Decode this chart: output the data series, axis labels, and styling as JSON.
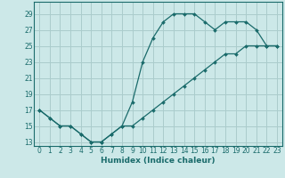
{
  "xlabel": "Humidex (Indice chaleur)",
  "bg_color": "#cce8e8",
  "grid_color": "#aacccc",
  "line_color": "#1a6b6b",
  "xlim": [
    -0.5,
    23.5
  ],
  "ylim": [
    12.5,
    30.5
  ],
  "yticks": [
    13,
    15,
    17,
    19,
    21,
    23,
    25,
    27,
    29
  ],
  "xticks": [
    0,
    1,
    2,
    3,
    4,
    5,
    6,
    7,
    8,
    9,
    10,
    11,
    12,
    13,
    14,
    15,
    16,
    17,
    18,
    19,
    20,
    21,
    22,
    23
  ],
  "upper_x": [
    0,
    1,
    2,
    3,
    4,
    5,
    6,
    7,
    8,
    9,
    10,
    11,
    12,
    13,
    14,
    15,
    16,
    17,
    18,
    19,
    20,
    21,
    22,
    23
  ],
  "upper_y": [
    17,
    16,
    15,
    15,
    14,
    13,
    13,
    14,
    15,
    18,
    23,
    26,
    28,
    29,
    29,
    29,
    28,
    27,
    28,
    28,
    28,
    27,
    25,
    25
  ],
  "lower_x": [
    0,
    1,
    2,
    3,
    4,
    5,
    6,
    7,
    8,
    9,
    10,
    11,
    12,
    13,
    14,
    15,
    16,
    17,
    18,
    19,
    20,
    21,
    22,
    23
  ],
  "lower_y": [
    17,
    16,
    15,
    15,
    14,
    13,
    13,
    14,
    15,
    15,
    16,
    17,
    18,
    19,
    20,
    21,
    22,
    23,
    24,
    24,
    25,
    25,
    25,
    25
  ],
  "xlabel_fontsize": 6.5,
  "tick_fontsize": 5.5,
  "linewidth": 0.9,
  "markersize": 2.0
}
